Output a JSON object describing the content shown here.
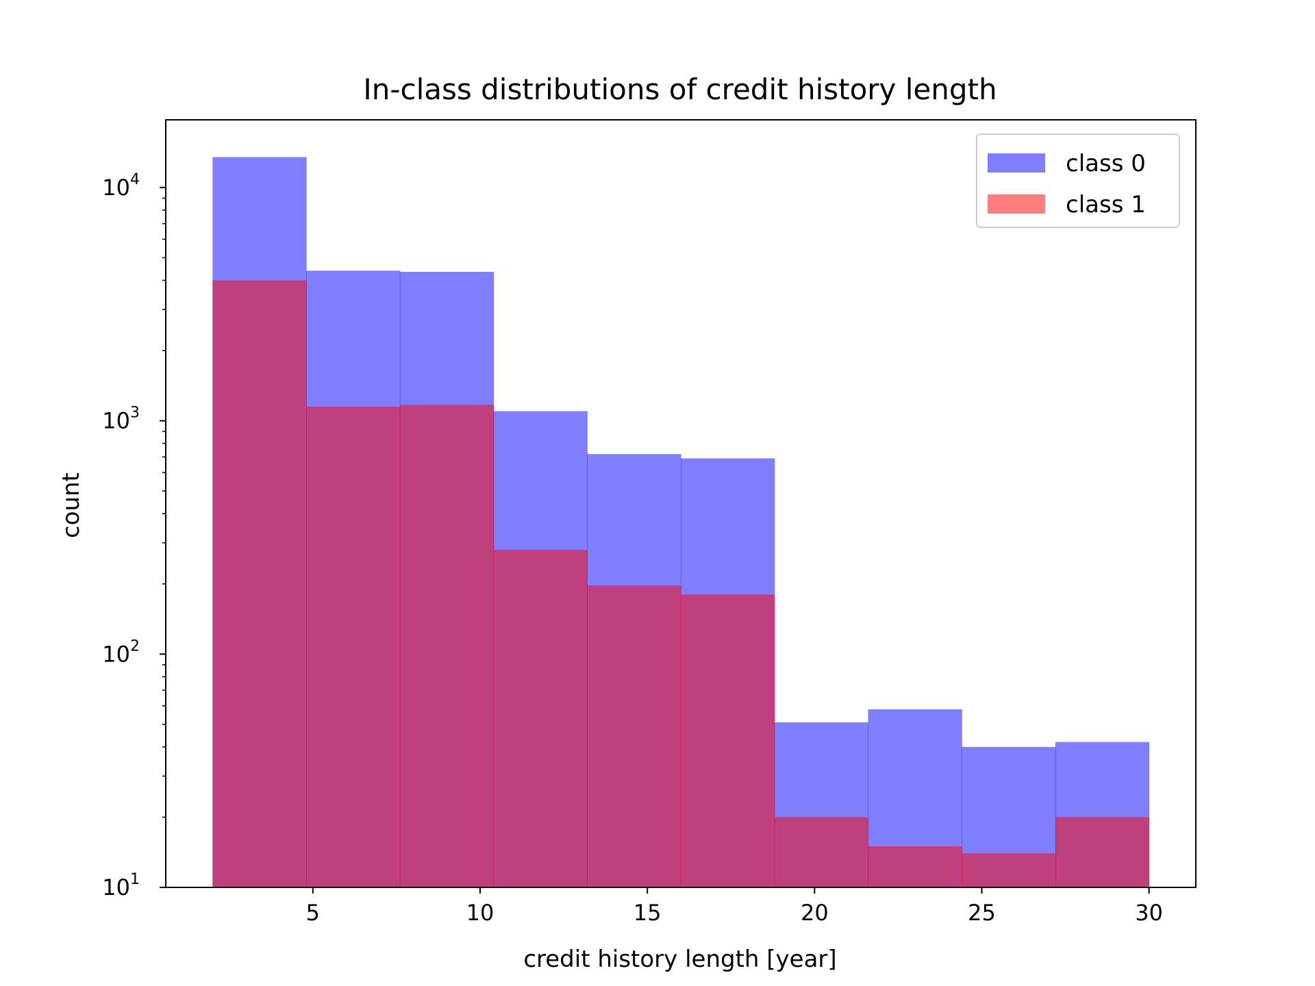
{
  "chart_data": {
    "type": "bar",
    "title": "In-class distributions of credit history length",
    "xlabel": "credit history length [year]",
    "ylabel": "count",
    "yscale": "log",
    "xlim": [
      0.6,
      31.4
    ],
    "ylim": [
      10,
      19500
    ],
    "grid": false,
    "legend_position": "top-right",
    "x_ticks": [
      5,
      10,
      15,
      20,
      25,
      30
    ],
    "y_ticks": [
      {
        "value": 10,
        "base": "10",
        "exp": "1"
      },
      {
        "value": 100,
        "base": "10",
        "exp": "2"
      },
      {
        "value": 1000,
        "base": "10",
        "exp": "3"
      },
      {
        "value": 10000,
        "base": "10",
        "exp": "4"
      }
    ],
    "bin_edges": [
      2,
      4.8,
      7.6,
      10.4,
      13.2,
      16.0,
      18.8,
      21.6,
      24.4,
      27.2,
      30
    ],
    "series": [
      {
        "name": "class 0",
        "color": "#0000ff",
        "alpha": 0.5,
        "values": [
          13500,
          4400,
          4350,
          1100,
          720,
          690,
          51,
          58,
          40,
          42
        ]
      },
      {
        "name": "class 1",
        "color": "#ff0000",
        "alpha": 0.5,
        "values": [
          4000,
          1150,
          1170,
          280,
          197,
          180,
          20,
          15,
          14,
          20
        ]
      }
    ]
  }
}
